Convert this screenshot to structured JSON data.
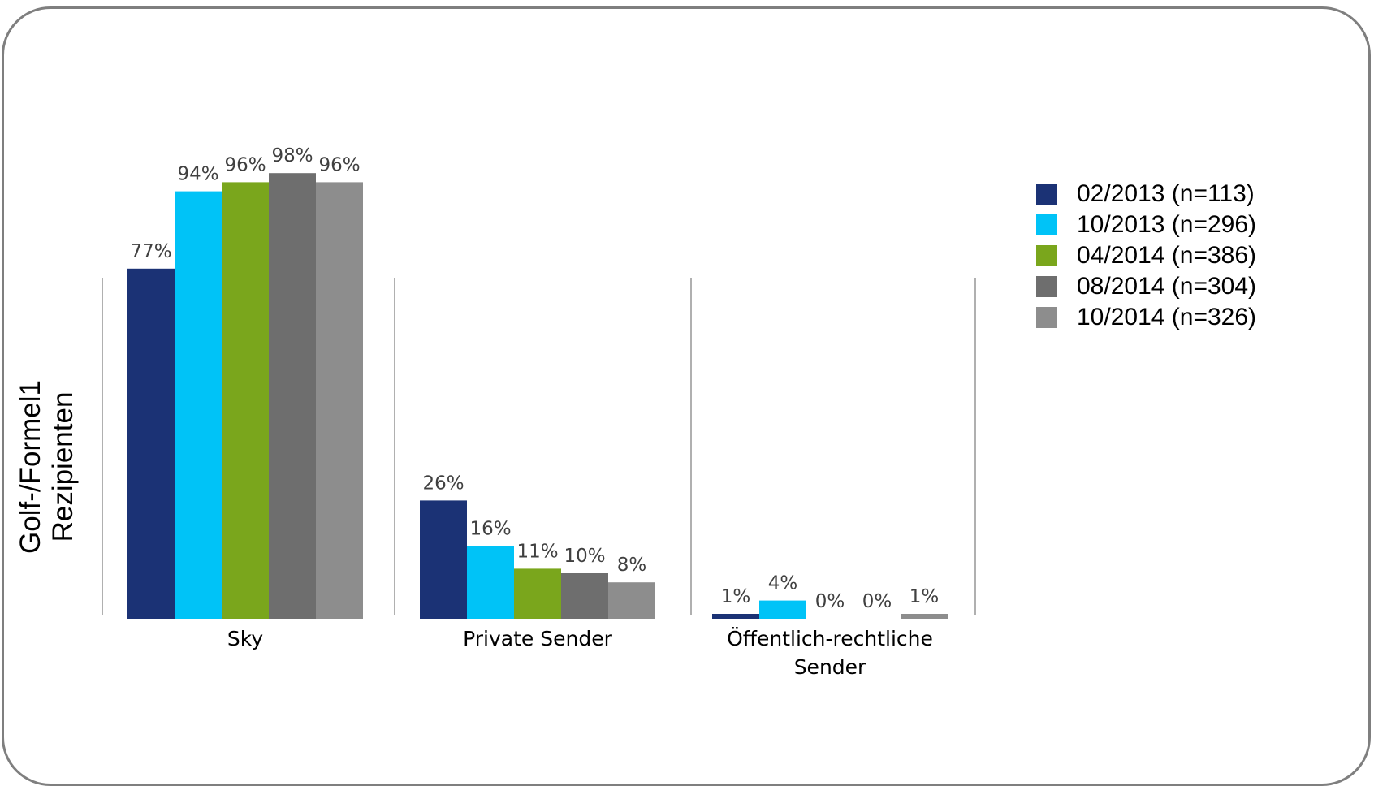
{
  "chart_data": {
    "type": "bar",
    "ylabel": [
      "Golf-/Formel1",
      "Rezipienten"
    ],
    "categories": [
      [
        "Sky"
      ],
      [
        "Private Sender"
      ],
      [
        "Öffentlich-rechtliche",
        "Sender"
      ]
    ],
    "ylim": [
      0,
      100
    ],
    "grid": false,
    "legend_position": "right",
    "series": [
      {
        "name": "02/2013 (n=113)",
        "color": "#1b3275",
        "values": [
          77,
          26,
          1
        ],
        "labels": [
          "77%",
          "26%",
          "1%"
        ]
      },
      {
        "name": "10/2013 (n=296)",
        "color": "#00c3f7",
        "values": [
          94,
          16,
          4
        ],
        "labels": [
          "94%",
          "16%",
          "4%"
        ]
      },
      {
        "name": "04/2014 (n=386)",
        "color": "#7aa61c",
        "values": [
          96,
          11,
          0
        ],
        "labels": [
          "96%",
          "11%",
          "0%"
        ]
      },
      {
        "name": "08/2014 (n=304)",
        "color": "#6e6e6e",
        "values": [
          98,
          10,
          0
        ],
        "labels": [
          "98%",
          "10%",
          "0%"
        ]
      },
      {
        "name": "10/2014 (n=326)",
        "color": "#8d8d8d",
        "values": [
          96,
          8,
          1
        ],
        "labels": [
          "96%",
          "8%",
          "1%"
        ]
      }
    ]
  }
}
